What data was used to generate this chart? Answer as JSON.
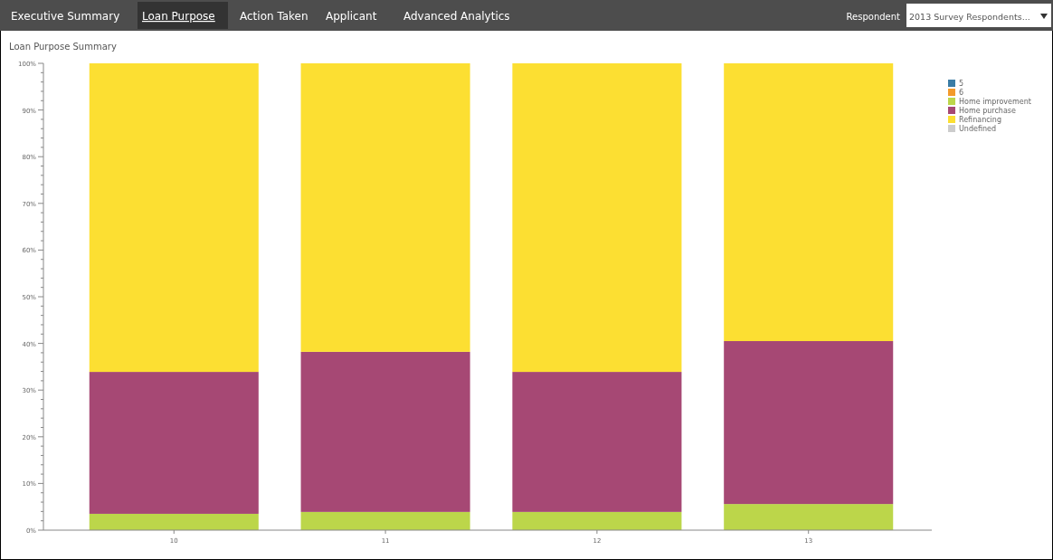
{
  "chart_data": {
    "type": "bar",
    "title": "Loan Purpose Summary",
    "stacked": true,
    "legend": "top right",
    "grid": false,
    "annotations": [
      "Executive Summary",
      "Loan Purpose",
      "Action Taken",
      "Applicant",
      "Advanced Analytics",
      "Respondent",
      "2013 Survey Respondents..."
    ],
    "categories": [
      "10",
      "11",
      "12",
      "13"
    ],
    "ylim": [
      0,
      100
    ],
    "yticks": [
      {
        "value": 0,
        "label": "0%"
      },
      {
        "value": 2,
        "label": null
      },
      {
        "value": 4,
        "label": null
      },
      {
        "value": 6,
        "label": null
      },
      {
        "value": 8,
        "label": null
      },
      {
        "value": 10,
        "label": "10%"
      },
      {
        "value": 12,
        "label": null
      },
      {
        "value": 14,
        "label": null
      },
      {
        "value": 16,
        "label": null
      },
      {
        "value": 18,
        "label": null
      },
      {
        "value": 20,
        "label": "20%"
      },
      {
        "value": 22,
        "label": null
      },
      {
        "value": 24,
        "label": null
      },
      {
        "value": 26,
        "label": null
      },
      {
        "value": 28,
        "label": null
      },
      {
        "value": 30,
        "label": "30%"
      },
      {
        "value": 32,
        "label": null
      },
      {
        "value": 34,
        "label": null
      },
      {
        "value": 36,
        "label": null
      },
      {
        "value": 38,
        "label": null
      },
      {
        "value": 40,
        "label": "40%"
      },
      {
        "value": 42,
        "label": null
      },
      {
        "value": 44,
        "label": null
      },
      {
        "value": 46,
        "label": null
      },
      {
        "value": 48,
        "label": null
      },
      {
        "value": 50,
        "label": "50%"
      },
      {
        "value": 52,
        "label": null
      },
      {
        "value": 54,
        "label": null
      },
      {
        "value": 56,
        "label": null
      },
      {
        "value": 58,
        "label": null
      },
      {
        "value": 60,
        "label": "60%"
      },
      {
        "value": 62,
        "label": null
      },
      {
        "value": 64,
        "label": null
      },
      {
        "value": 66,
        "label": null
      },
      {
        "value": 68,
        "label": null
      },
      {
        "value": 70,
        "label": "70%"
      },
      {
        "value": 72,
        "label": null
      },
      {
        "value": 74,
        "label": null
      },
      {
        "value": 76,
        "label": null
      },
      {
        "value": 78,
        "label": null
      },
      {
        "value": 80,
        "label": "80%"
      },
      {
        "value": 82,
        "label": null
      },
      {
        "value": 84,
        "label": null
      },
      {
        "value": 86,
        "label": null
      },
      {
        "value": 88,
        "label": null
      },
      {
        "value": 90,
        "label": "90%"
      },
      {
        "value": 92,
        "label": null
      },
      {
        "value": 94,
        "label": null
      },
      {
        "value": 96,
        "label": null
      },
      {
        "value": 98,
        "label": null
      },
      {
        "value": 100,
        "label": "100%"
      }
    ],
    "series": [
      {
        "name": "5",
        "color": "#3a7ca5",
        "values": [
          0,
          0,
          0,
          0
        ]
      },
      {
        "name": "6",
        "color": "#f39a2b",
        "values": [
          0,
          0,
          0,
          0
        ]
      },
      {
        "name": "Home improvement",
        "color": "#bcd64a",
        "values": [
          3.5,
          3.9,
          3.9,
          5.6
        ]
      },
      {
        "name": "Home purchase",
        "color": "#a64874",
        "values": [
          30.4,
          34.3,
          30.0,
          34.9
        ]
      },
      {
        "name": "Refinancing",
        "color": "#fcdf32",
        "values": [
          66.1,
          61.8,
          66.1,
          59.5
        ]
      },
      {
        "name": "Undefined",
        "color": "#cccccc",
        "values": [
          0,
          0,
          0,
          0
        ]
      }
    ]
  }
}
